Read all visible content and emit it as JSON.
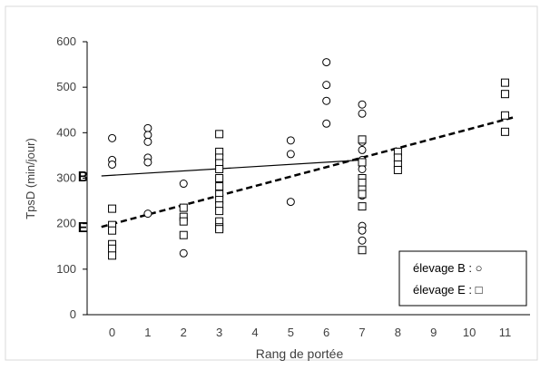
{
  "chart_data": {
    "type": "scatter",
    "title": "",
    "xlabel": "Rang de portée",
    "ylabel": "TpsD (min/jour)",
    "xlim": [
      -0.7,
      11.7
    ],
    "ylim": [
      0,
      600
    ],
    "xticks": [
      0,
      1,
      2,
      3,
      4,
      5,
      6,
      7,
      8,
      9,
      10,
      11
    ],
    "yticks": [
      0,
      100,
      200,
      300,
      400,
      500,
      600
    ],
    "grid": false,
    "legend_position": "bottom-right",
    "legend": [
      {
        "label": "élevage B : ○",
        "marker": "circle"
      },
      {
        "label": "élevage E : □",
        "marker": "square"
      }
    ],
    "series": [
      {
        "marker": "circle",
        "points": [
          [
            0,
            388
          ],
          [
            0,
            340
          ],
          [
            0,
            330
          ],
          [
            1,
            410
          ],
          [
            1,
            395
          ],
          [
            1,
            380
          ],
          [
            1,
            345
          ],
          [
            1,
            335
          ],
          [
            1,
            222
          ],
          [
            2,
            288
          ],
          [
            2,
            135
          ],
          [
            5,
            383
          ],
          [
            5,
            353
          ],
          [
            5,
            248
          ],
          [
            6,
            555
          ],
          [
            6,
            505
          ],
          [
            6,
            470
          ],
          [
            6,
            420
          ],
          [
            7,
            462
          ],
          [
            7,
            442
          ],
          [
            7,
            380
          ],
          [
            7,
            362
          ],
          [
            7,
            340
          ],
          [
            7,
            320
          ],
          [
            7,
            300
          ],
          [
            7,
            280
          ],
          [
            7,
            262
          ],
          [
            7,
            195
          ],
          [
            7,
            185
          ],
          [
            7,
            163
          ]
        ]
      },
      {
        "marker": "square",
        "points": [
          [
            0,
            233
          ],
          [
            0,
            197
          ],
          [
            0,
            185
          ],
          [
            0,
            155
          ],
          [
            0,
            145
          ],
          [
            0,
            130
          ],
          [
            2,
            235
          ],
          [
            2,
            215
          ],
          [
            2,
            205
          ],
          [
            2,
            175
          ],
          [
            3,
            397
          ],
          [
            3,
            358
          ],
          [
            3,
            345
          ],
          [
            3,
            333
          ],
          [
            3,
            320
          ],
          [
            3,
            300
          ],
          [
            3,
            282
          ],
          [
            3,
            265
          ],
          [
            3,
            252
          ],
          [
            3,
            240
          ],
          [
            3,
            228
          ],
          [
            3,
            205
          ],
          [
            3,
            192
          ],
          [
            3,
            188
          ],
          [
            7,
            385
          ],
          [
            7,
            335
          ],
          [
            7,
            300
          ],
          [
            7,
            290
          ],
          [
            7,
            275
          ],
          [
            7,
            265
          ],
          [
            7,
            238
          ],
          [
            7,
            142
          ],
          [
            8,
            358
          ],
          [
            8,
            345
          ],
          [
            8,
            330
          ],
          [
            8,
            318
          ],
          [
            11,
            510
          ],
          [
            11,
            485
          ],
          [
            11,
            438
          ],
          [
            11,
            402
          ]
        ]
      }
    ],
    "trendlines": [
      {
        "label": "B",
        "style": "solid",
        "from": [
          -0.3,
          305
        ],
        "to": [
          7,
          340
        ]
      },
      {
        "label": "E",
        "style": "dashed",
        "from": [
          -0.3,
          193
        ],
        "to": [
          11.3,
          435
        ]
      }
    ]
  }
}
